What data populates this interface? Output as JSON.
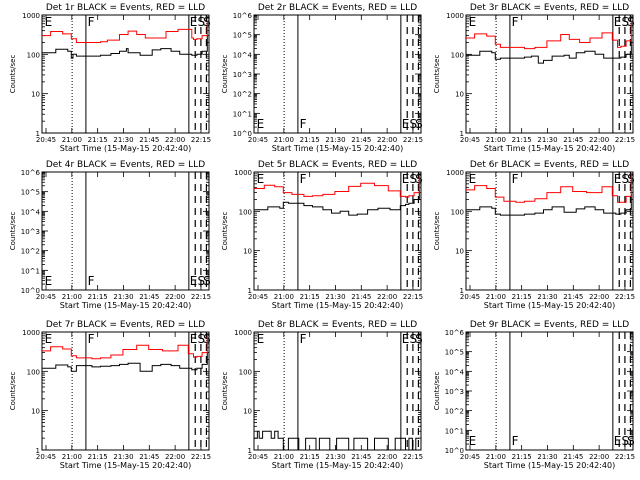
{
  "figure": {
    "xlabel": "Start Time (15-May-15 20:42:40)",
    "ylabel": "Counts/sec",
    "x_ticks": [
      "20:45",
      "21:00",
      "21:15",
      "21:30",
      "21:45",
      "22:00",
      "22:15"
    ],
    "colors": {
      "events": "#000000",
      "lld": "#ff0000",
      "axes": "#000000"
    }
  },
  "chart_data": [
    {
      "type": "line",
      "detector": "1r",
      "title": "Det 1r BLACK = Events, RED = LLD",
      "xlabel": "Start Time (15-May-15 20:42:40)",
      "ylabel": "Counts/sec",
      "y_scale": "log",
      "ylim": [
        1,
        1000
      ],
      "y_ticks": [
        {
          "v": 1,
          "label": "1"
        },
        {
          "v": 10,
          "label": "10"
        },
        {
          "v": 100,
          "label": "100"
        },
        {
          "v": 1000,
          "label": "1000"
        }
      ],
      "x_ticks": [
        "20:45",
        "21:00",
        "21:15",
        "21:30",
        "21:45",
        "22:00",
        "22:15"
      ],
      "xlim_minutes": [
        0,
        97
      ],
      "annotations": [
        "E",
        "F",
        "E",
        "S",
        "S"
      ],
      "series": [
        {
          "name": "Events",
          "color": "#000000",
          "x": [
            0,
            8,
            15,
            17,
            18,
            20,
            29,
            34,
            40,
            45,
            49,
            50,
            57,
            60,
            64,
            69,
            75,
            80,
            87,
            88,
            90,
            93,
            96
          ],
          "y": [
            110,
            135,
            120,
            80,
            100,
            90,
            90,
            95,
            105,
            120,
            140,
            110,
            95,
            95,
            130,
            140,
            120,
            100,
            95,
            95,
            100,
            120,
            300
          ]
        },
        {
          "name": "LLD",
          "color": "#ff0000",
          "x": [
            0,
            5,
            12,
            17,
            20,
            29,
            34,
            38,
            45,
            50,
            55,
            60,
            65,
            72,
            79,
            87,
            88,
            90,
            93,
            96
          ],
          "y": [
            300,
            380,
            330,
            250,
            200,
            200,
            210,
            230,
            320,
            390,
            320,
            260,
            260,
            380,
            430,
            260,
            240,
            250,
            300,
            700
          ]
        }
      ]
    },
    {
      "type": "line",
      "detector": "2r",
      "title": "Det 2r BLACK = Events, RED = LLD",
      "xlabel": "Start Time (15-May-15 20:42:40)",
      "ylabel": "Counts/sec",
      "y_scale": "log",
      "ylim": [
        1,
        1000000
      ],
      "y_ticks": [
        {
          "v": 1,
          "label": "10^0"
        },
        {
          "v": 10,
          "label": "10^1"
        },
        {
          "v": 100,
          "label": "10^2"
        },
        {
          "v": 1000,
          "label": "10^3"
        },
        {
          "v": 10000,
          "label": "10^4"
        },
        {
          "v": 100000,
          "label": "10^5"
        },
        {
          "v": 1000000,
          "label": "10^6"
        }
      ],
      "x_ticks": [
        "20:45",
        "21:00",
        "21:15",
        "21:30",
        "21:45",
        "22:00",
        "22:15"
      ],
      "xlim_minutes": [
        0,
        97
      ],
      "annotations": [
        "E",
        "F",
        "E",
        "S",
        "S"
      ],
      "series": []
    },
    {
      "type": "line",
      "detector": "3r",
      "title": "Det 3r BLACK = Events, RED = LLD",
      "xlabel": "Start Time (15-May-15 20:42:40)",
      "ylabel": "Counts/sec",
      "y_scale": "log",
      "ylim": [
        1,
        1000
      ],
      "y_ticks": [
        {
          "v": 1,
          "label": "1"
        },
        {
          "v": 10,
          "label": "10"
        },
        {
          "v": 100,
          "label": "100"
        },
        {
          "v": 1000,
          "label": "1000"
        }
      ],
      "x_ticks": [
        "20:45",
        "21:00",
        "21:15",
        "21:30",
        "21:45",
        "22:00",
        "22:15"
      ],
      "xlim_minutes": [
        0,
        97
      ],
      "annotations": [
        "E",
        "F",
        "E",
        "S",
        "S"
      ],
      "series": [
        {
          "name": "Events",
          "color": "#000000",
          "x": [
            0,
            8,
            15,
            17,
            20,
            29,
            34,
            38,
            42,
            45,
            50,
            57,
            60,
            64,
            69,
            75,
            80,
            87,
            88,
            90,
            93,
            96
          ],
          "y": [
            95,
            120,
            110,
            75,
            80,
            80,
            85,
            90,
            60,
            70,
            90,
            95,
            80,
            110,
            120,
            100,
            80,
            80,
            80,
            85,
            100,
            250
          ]
        },
        {
          "name": "LLD",
          "color": "#ff0000",
          "x": [
            0,
            5,
            12,
            17,
            20,
            29,
            34,
            40,
            47,
            55,
            60,
            66,
            72,
            79,
            85,
            88,
            90,
            93,
            96
          ],
          "y": [
            260,
            330,
            290,
            180,
            150,
            150,
            140,
            150,
            220,
            320,
            240,
            200,
            260,
            350,
            230,
            150,
            160,
            220,
            700
          ]
        }
      ]
    },
    {
      "type": "line",
      "detector": "4r",
      "title": "Det 4r BLACK = Events, RED = LLD",
      "xlabel": "Start Time (15-May-15 20:42:40)",
      "ylabel": "Counts/sec",
      "y_scale": "log",
      "ylim": [
        1,
        1000000
      ],
      "y_ticks": [
        {
          "v": 1,
          "label": "10^0"
        },
        {
          "v": 10,
          "label": "10^1"
        },
        {
          "v": 100,
          "label": "10^2"
        },
        {
          "v": 1000,
          "label": "10^3"
        },
        {
          "v": 10000,
          "label": "10^4"
        },
        {
          "v": 100000,
          "label": "10^5"
        },
        {
          "v": 1000000,
          "label": "10^6"
        }
      ],
      "x_ticks": [
        "20:45",
        "21:00",
        "21:15",
        "21:30",
        "21:45",
        "22:00",
        "22:15"
      ],
      "xlim_minutes": [
        0,
        97
      ],
      "annotations": [
        "E",
        "F",
        "E",
        "S",
        "S"
      ],
      "series": []
    },
    {
      "type": "line",
      "detector": "5r",
      "title": "Det 5r BLACK = Events, RED = LLD",
      "xlabel": "Start Time (15-May-15 20:42:40)",
      "ylabel": "Counts/sec",
      "y_scale": "log",
      "ylim": [
        1,
        1000
      ],
      "y_ticks": [
        {
          "v": 1,
          "label": "1"
        },
        {
          "v": 10,
          "label": "10"
        },
        {
          "v": 100,
          "label": "100"
        },
        {
          "v": 1000,
          "label": "1000"
        }
      ],
      "x_ticks": [
        "20:45",
        "21:00",
        "21:15",
        "21:30",
        "21:45",
        "22:00",
        "22:15"
      ],
      "xlim_minutes": [
        0,
        97
      ],
      "annotations": [
        "E",
        "F",
        "E",
        "S",
        "S"
      ],
      "series": [
        {
          "name": "Events",
          "color": "#000000",
          "x": [
            0,
            8,
            15,
            17,
            20,
            29,
            34,
            40,
            45,
            50,
            55,
            60,
            66,
            72,
            79,
            85,
            88,
            90,
            93,
            96
          ],
          "y": [
            110,
            130,
            120,
            170,
            160,
            140,
            130,
            110,
            90,
            100,
            80,
            85,
            110,
            120,
            110,
            140,
            150,
            160,
            200,
            350
          ]
        },
        {
          "name": "LLD",
          "color": "#ff0000",
          "x": [
            0,
            6,
            12,
            17,
            22,
            29,
            34,
            40,
            47,
            55,
            62,
            70,
            78,
            85,
            88,
            90,
            93,
            96
          ],
          "y": [
            380,
            460,
            420,
            300,
            270,
            240,
            250,
            270,
            320,
            430,
            520,
            450,
            330,
            240,
            230,
            250,
            300,
            800
          ]
        }
      ]
    },
    {
      "type": "line",
      "detector": "6r",
      "title": "Det 6r BLACK = Events, RED = LLD",
      "xlabel": "Start Time (15-May-15 20:42:40)",
      "ylabel": "Counts/sec",
      "y_scale": "log",
      "ylim": [
        1,
        1000
      ],
      "y_ticks": [
        {
          "v": 1,
          "label": "1"
        },
        {
          "v": 10,
          "label": "10"
        },
        {
          "v": 100,
          "label": "100"
        },
        {
          "v": 1000,
          "label": "1000"
        }
      ],
      "x_ticks": [
        "20:45",
        "21:00",
        "21:15",
        "21:30",
        "21:45",
        "22:00",
        "22:15"
      ],
      "xlim_minutes": [
        0,
        97
      ],
      "annotations": [
        "E",
        "F",
        "E",
        "S",
        "S"
      ],
      "series": [
        {
          "name": "Events",
          "color": "#000000",
          "x": [
            0,
            8,
            15,
            17,
            20,
            29,
            34,
            40,
            45,
            50,
            57,
            64,
            69,
            75,
            80,
            87,
            88,
            90,
            93,
            96
          ],
          "y": [
            110,
            130,
            120,
            85,
            80,
            80,
            85,
            90,
            110,
            130,
            95,
            115,
            130,
            110,
            90,
            85,
            85,
            90,
            110,
            280
          ]
        },
        {
          "name": "LLD",
          "color": "#ff0000",
          "x": [
            0,
            5,
            12,
            17,
            22,
            29,
            34,
            40,
            47,
            55,
            62,
            70,
            79,
            85,
            88,
            90,
            93,
            96
          ],
          "y": [
            350,
            450,
            380,
            230,
            180,
            170,
            180,
            210,
            300,
            420,
            320,
            300,
            420,
            250,
            170,
            170,
            240,
            900
          ]
        }
      ]
    },
    {
      "type": "line",
      "detector": "7r",
      "title": "Det 7r BLACK = Events, RED = LLD",
      "xlabel": "Start Time (15-May-15 20:42:40)",
      "ylabel": "Counts/sec",
      "y_scale": "log",
      "ylim": [
        1,
        1000
      ],
      "y_ticks": [
        {
          "v": 1,
          "label": "1"
        },
        {
          "v": 10,
          "label": "10"
        },
        {
          "v": 100,
          "label": "100"
        },
        {
          "v": 1000,
          "label": "1000"
        }
      ],
      "x_ticks": [
        "20:45",
        "21:00",
        "21:15",
        "21:30",
        "21:45",
        "22:00",
        "22:15"
      ],
      "xlim_minutes": [
        0,
        97
      ],
      "annotations": [
        "E",
        "F",
        "E",
        "S",
        "S"
      ],
      "series": [
        {
          "name": "Events",
          "color": "#000000",
          "x": [
            0,
            8,
            15,
            17,
            20,
            29,
            34,
            40,
            45,
            50,
            57,
            64,
            69,
            75,
            80,
            87,
            88,
            90,
            93,
            96
          ],
          "y": [
            120,
            145,
            130,
            100,
            140,
            130,
            135,
            140,
            150,
            160,
            100,
            140,
            150,
            140,
            120,
            110,
            110,
            120,
            150,
            300
          ]
        },
        {
          "name": "LLD",
          "color": "#ff0000",
          "x": [
            0,
            5,
            12,
            17,
            20,
            29,
            34,
            40,
            47,
            55,
            62,
            70,
            79,
            85,
            88,
            90,
            93,
            96
          ],
          "y": [
            330,
            420,
            370,
            250,
            220,
            210,
            220,
            260,
            360,
            460,
            360,
            330,
            460,
            280,
            230,
            240,
            300,
            800
          ]
        }
      ]
    },
    {
      "type": "line",
      "detector": "8r",
      "title": "Det 8r BLACK = Events, RED = LLD",
      "xlabel": "Start Time (15-May-15 20:42:40)",
      "ylabel": "Counts/sec",
      "y_scale": "log",
      "ylim": [
        1,
        1000
      ],
      "y_ticks": [
        {
          "v": 1,
          "label": "1"
        },
        {
          "v": 10,
          "label": "10"
        },
        {
          "v": 100,
          "label": "100"
        },
        {
          "v": 1000,
          "label": "1000"
        }
      ],
      "x_ticks": [
        "20:45",
        "21:00",
        "21:15",
        "21:30",
        "21:45",
        "22:00",
        "22:15"
      ],
      "xlim_minutes": [
        0,
        97
      ],
      "annotations": [
        "E",
        "F",
        "E",
        "S",
        "S"
      ],
      "series": [
        {
          "name": "Events",
          "color": "#000000",
          "x": [
            0,
            2,
            3,
            5,
            6,
            8,
            10,
            12,
            14,
            17,
            20,
            24,
            26,
            30,
            33,
            36,
            38,
            40,
            44,
            48,
            52,
            55,
            58,
            62,
            66,
            70,
            74,
            78,
            82,
            86,
            88,
            90,
            92,
            94,
            96
          ],
          "y": [
            2,
            3,
            2,
            3,
            3,
            3,
            2,
            3,
            2,
            1,
            2,
            2,
            1,
            2,
            2,
            1,
            2,
            2,
            1,
            2,
            2,
            1,
            2,
            2,
            1,
            2,
            2,
            1,
            2,
            2,
            1,
            2,
            1,
            2,
            2
          ]
        }
      ]
    },
    {
      "type": "line",
      "detector": "9r",
      "title": "Det 9r BLACK = Events, RED = LLD",
      "xlabel": "Start Time (15-May-15 20:42:40)",
      "ylabel": "Counts/sec",
      "y_scale": "log",
      "ylim": [
        1,
        1000000
      ],
      "y_ticks": [
        {
          "v": 1,
          "label": "10^0"
        },
        {
          "v": 10,
          "label": "10^1"
        },
        {
          "v": 100,
          "label": "10^2"
        },
        {
          "v": 1000,
          "label": "10^3"
        },
        {
          "v": 10000,
          "label": "10^4"
        },
        {
          "v": 100000,
          "label": "10^5"
        },
        {
          "v": 1000000,
          "label": "10^6"
        }
      ],
      "x_ticks": [
        "20:45",
        "21:00",
        "21:15",
        "21:30",
        "21:45",
        "22:00",
        "22:15"
      ],
      "xlim_minutes": [
        0,
        97
      ],
      "annotations": [
        "E",
        "F",
        "E",
        "S",
        "S"
      ],
      "series": []
    }
  ]
}
